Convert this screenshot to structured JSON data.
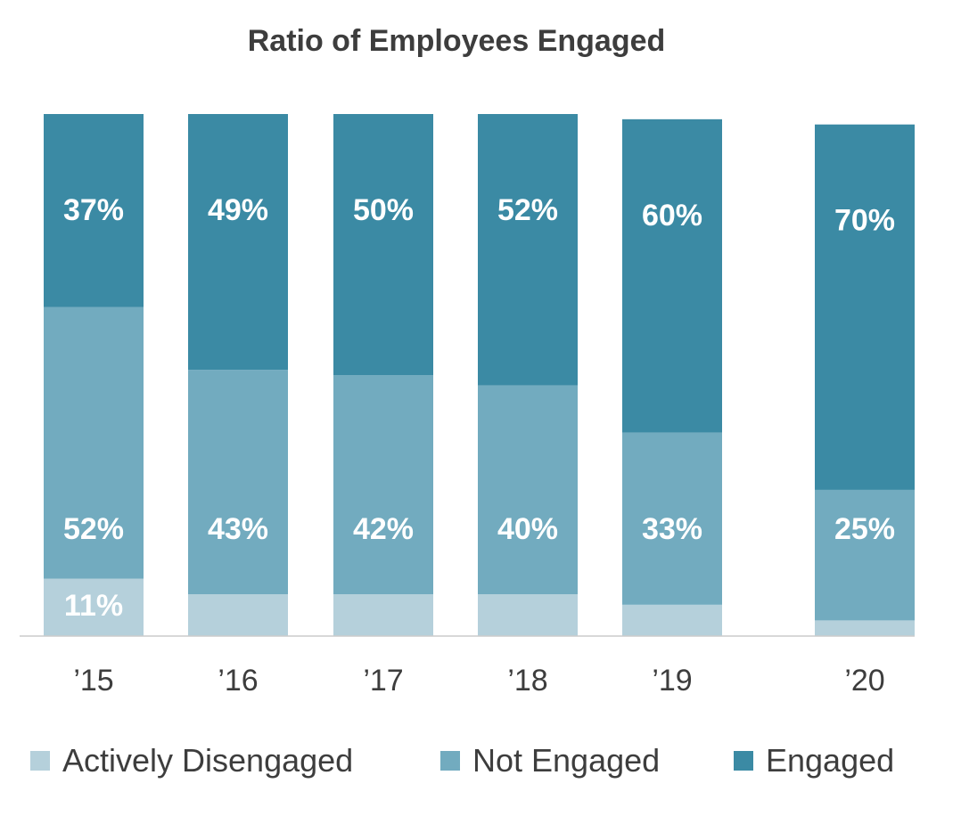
{
  "chart_data": {
    "type": "bar",
    "stacked": true,
    "title": "Ratio of Employees Engaged",
    "xlabel": "",
    "ylabel": "",
    "ylim": [
      0,
      100
    ],
    "categories": [
      "’15",
      "’16",
      "’17",
      "’18",
      "’19",
      "’20"
    ],
    "series": [
      {
        "name": "Actively Disengaged",
        "color": "#b5d0db",
        "values": [
          11,
          8,
          8,
          8,
          6,
          3
        ],
        "labels": [
          "11%",
          "",
          "",
          "",
          "",
          ""
        ]
      },
      {
        "name": "Not Engaged",
        "color": "#72abbf",
        "values": [
          52,
          43,
          42,
          40,
          33,
          25
        ],
        "labels": [
          "52%",
          "43%",
          "42%",
          "40%",
          "33%",
          "25%"
        ]
      },
      {
        "name": "Engaged",
        "color": "#3b8aa4",
        "values": [
          37,
          49,
          50,
          52,
          60,
          70
        ],
        "labels": [
          "37%",
          "49%",
          "50%",
          "52%",
          "60%",
          "70%"
        ]
      }
    ],
    "legend_position": "bottom",
    "grid": false
  },
  "colors": {
    "title_text": "#3d3d3d",
    "axis_line": "#cccccc",
    "segment_label": "#ffffff"
  }
}
